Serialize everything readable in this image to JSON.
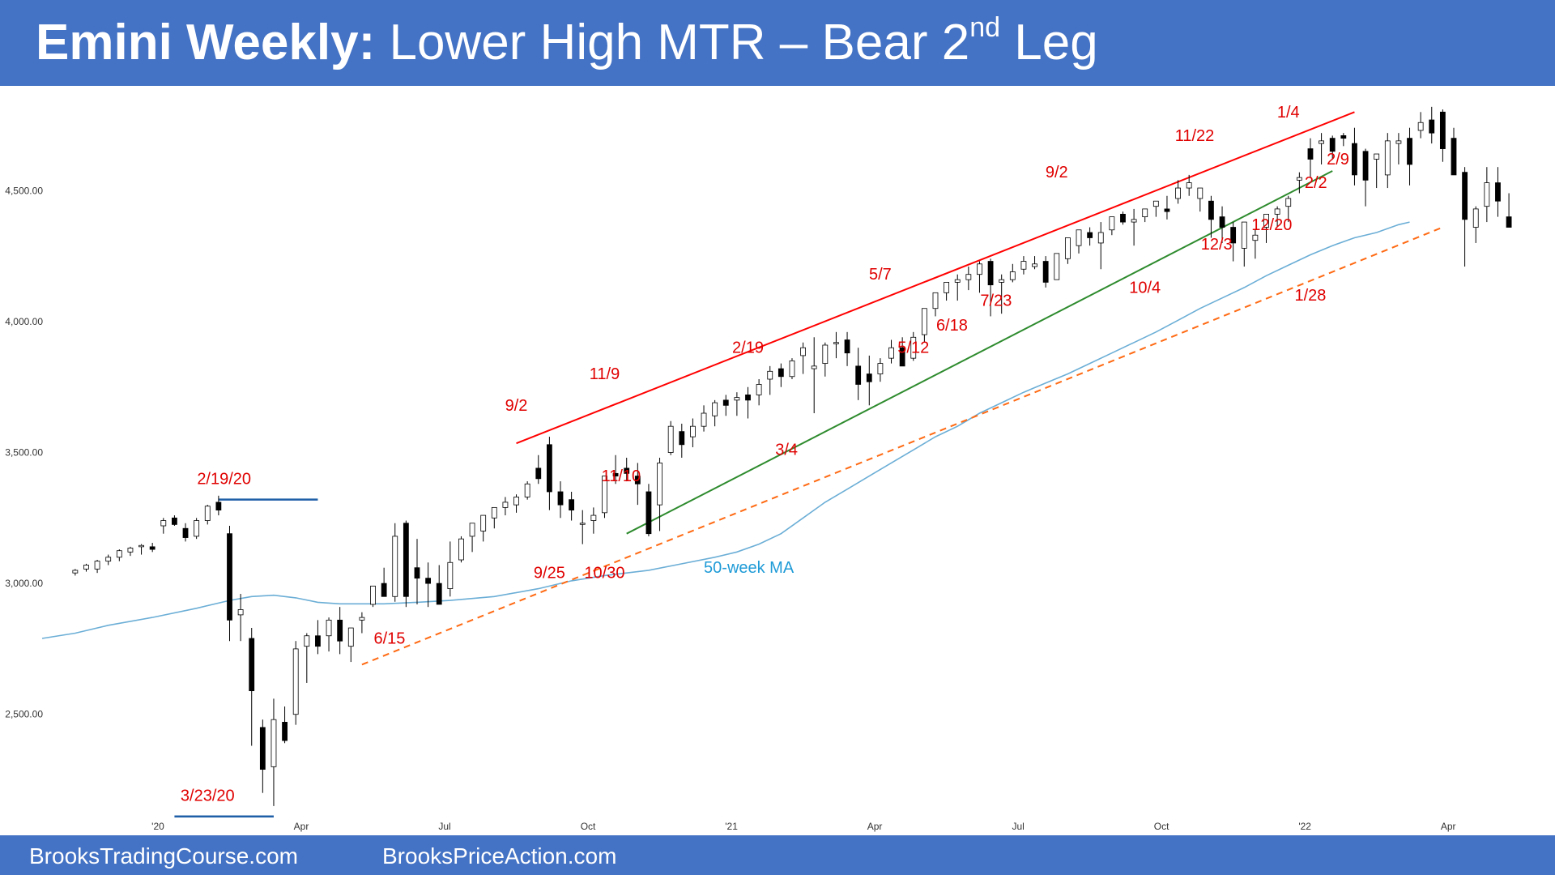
{
  "header": {
    "title_bold": "Emini Weekly:",
    "title_rest": " Lower High MTR – Bear 2",
    "title_sup": "nd",
    "title_tail": " Leg"
  },
  "footer": {
    "left": "BrooksTradingCourse.com",
    "right": "BrooksPriceAction.com"
  },
  "colors": {
    "banner": "#4472c4",
    "bull_candle": "#ffffff",
    "bear_candle": "#000000",
    "moving_average": "#6baed6",
    "upper_channel": "#ff0000",
    "lower_channel": "#2e8b2e",
    "trend_line": "#ff6a13",
    "level_line": "#1f5fa8",
    "annotation": "#e00000"
  },
  "chart_data": {
    "type": "candlestick",
    "x_unit": "weeks since first plotted bar (week of 2019-11-11)",
    "ylim": [
      2100,
      4900
    ],
    "xlim": [
      -3,
      125
    ],
    "yticks": [
      {
        "value": 2500,
        "label": "2,500.00"
      },
      {
        "value": 3000,
        "label": "3,000.00"
      },
      {
        "value": 3500,
        "label": "3,500.00"
      },
      {
        "value": 4000,
        "label": "4,000.00"
      },
      {
        "value": 4500,
        "label": "4,500.00"
      }
    ],
    "xticks": [
      {
        "x": 7.5,
        "label": "'20"
      },
      {
        "x": 20.5,
        "label": "Apr"
      },
      {
        "x": 33.5,
        "label": "Jul"
      },
      {
        "x": 46.5,
        "label": "Oct"
      },
      {
        "x": 59.5,
        "label": "'21"
      },
      {
        "x": 72.5,
        "label": "Apr"
      },
      {
        "x": 85.5,
        "label": "Jul"
      },
      {
        "x": 98.5,
        "label": "Oct"
      },
      {
        "x": 111.5,
        "label": "'22"
      },
      {
        "x": 124.5,
        "label": "Apr"
      }
    ],
    "candles_ohlc": [
      [
        3040,
        3055,
        3030,
        3050
      ],
      [
        3055,
        3075,
        3045,
        3070
      ],
      [
        3055,
        3090,
        3040,
        3085
      ],
      [
        3085,
        3110,
        3070,
        3100
      ],
      [
        3100,
        3130,
        3085,
        3125
      ],
      [
        3120,
        3140,
        3105,
        3135
      ],
      [
        3140,
        3150,
        3110,
        3145
      ],
      [
        3140,
        3155,
        3120,
        3130
      ],
      [
        3220,
        3250,
        3190,
        3240
      ],
      [
        3250,
        3260,
        3220,
        3225
      ],
      [
        3210,
        3230,
        3160,
        3175
      ],
      [
        3180,
        3250,
        3170,
        3240
      ],
      [
        3240,
        3300,
        3225,
        3295
      ],
      [
        3310,
        3335,
        3260,
        3280
      ],
      [
        3190,
        3220,
        2780,
        2860
      ],
      [
        2880,
        2960,
        2780,
        2900
      ],
      [
        2790,
        2830,
        2380,
        2590
      ],
      [
        2450,
        2480,
        2200,
        2290
      ],
      [
        2300,
        2560,
        2150,
        2480
      ],
      [
        2470,
        2530,
        2390,
        2400
      ],
      [
        2500,
        2780,
        2460,
        2750
      ],
      [
        2760,
        2810,
        2620,
        2800
      ],
      [
        2800,
        2860,
        2730,
        2760
      ],
      [
        2800,
        2870,
        2740,
        2860
      ],
      [
        2860,
        2910,
        2730,
        2780
      ],
      [
        2760,
        2810,
        2700,
        2830
      ],
      [
        2860,
        2890,
        2810,
        2870
      ],
      [
        2920,
        2990,
        2910,
        2990
      ],
      [
        3000,
        3060,
        2960,
        2950
      ],
      [
        2950,
        3230,
        2930,
        3180
      ],
      [
        3230,
        3240,
        2910,
        2950
      ],
      [
        3060,
        3170,
        2920,
        3020
      ],
      [
        3020,
        3080,
        2910,
        3000
      ],
      [
        3000,
        3070,
        2930,
        2920
      ],
      [
        2980,
        3160,
        2950,
        3080
      ],
      [
        3090,
        3180,
        3080,
        3170
      ],
      [
        3180,
        3200,
        3120,
        3230
      ],
      [
        3200,
        3250,
        3160,
        3260
      ],
      [
        3250,
        3290,
        3210,
        3290
      ],
      [
        3290,
        3330,
        3260,
        3310
      ],
      [
        3300,
        3340,
        3270,
        3330
      ],
      [
        3330,
        3390,
        3320,
        3380
      ],
      [
        3440,
        3490,
        3380,
        3400
      ],
      [
        3530,
        3560,
        3280,
        3350
      ],
      [
        3350,
        3390,
        3250,
        3300
      ],
      [
        3320,
        3350,
        3240,
        3280
      ],
      [
        3230,
        3280,
        3150,
        3230
      ],
      [
        3240,
        3290,
        3190,
        3260
      ],
      [
        3270,
        3390,
        3250,
        3410
      ],
      [
        3420,
        3490,
        3380,
        3410
      ],
      [
        3440,
        3480,
        3390,
        3420
      ],
      [
        3410,
        3460,
        3300,
        3380
      ],
      [
        3350,
        3380,
        3180,
        3190
      ],
      [
        3300,
        3480,
        3200,
        3460
      ],
      [
        3500,
        3620,
        3490,
        3600
      ],
      [
        3580,
        3610,
        3480,
        3530
      ],
      [
        3560,
        3630,
        3520,
        3600
      ],
      [
        3600,
        3680,
        3580,
        3650
      ],
      [
        3640,
        3700,
        3600,
        3690
      ],
      [
        3700,
        3720,
        3640,
        3680
      ],
      [
        3700,
        3730,
        3640,
        3710
      ],
      [
        3720,
        3750,
        3630,
        3700
      ],
      [
        3720,
        3780,
        3680,
        3760
      ],
      [
        3780,
        3830,
        3720,
        3810
      ],
      [
        3820,
        3840,
        3750,
        3790
      ],
      [
        3790,
        3860,
        3780,
        3850
      ],
      [
        3870,
        3920,
        3800,
        3900
      ],
      [
        3820,
        3940,
        3650,
        3830
      ],
      [
        3840,
        3920,
        3790,
        3910
      ],
      [
        3920,
        3960,
        3860,
        3920
      ],
      [
        3930,
        3960,
        3830,
        3880
      ],
      [
        3830,
        3900,
        3700,
        3760
      ],
      [
        3800,
        3870,
        3680,
        3770
      ],
      [
        3800,
        3860,
        3770,
        3840
      ],
      [
        3860,
        3930,
        3840,
        3900
      ],
      [
        3900,
        3940,
        3840,
        3830
      ],
      [
        3860,
        3960,
        3850,
        3940
      ],
      [
        3950,
        4010,
        3920,
        4050
      ],
      [
        4050,
        4110,
        4020,
        4110
      ],
      [
        4110,
        4150,
        4080,
        4150
      ],
      [
        4150,
        4180,
        4080,
        4160
      ],
      [
        4160,
        4210,
        4120,
        4180
      ],
      [
        4180,
        4230,
        4110,
        4220
      ],
      [
        4230,
        4240,
        4020,
        4140
      ],
      [
        4150,
        4180,
        4030,
        4160
      ],
      [
        4160,
        4220,
        4150,
        4190
      ],
      [
        4200,
        4250,
        4180,
        4230
      ],
      [
        4210,
        4250,
        4200,
        4220
      ],
      [
        4230,
        4250,
        4130,
        4150
      ],
      [
        4160,
        4240,
        4160,
        4260
      ],
      [
        4240,
        4300,
        4220,
        4320
      ],
      [
        4290,
        4330,
        4260,
        4350
      ],
      [
        4340,
        4360,
        4290,
        4320
      ],
      [
        4300,
        4380,
        4200,
        4340
      ],
      [
        4350,
        4400,
        4330,
        4400
      ],
      [
        4410,
        4420,
        4370,
        4380
      ],
      [
        4380,
        4430,
        4290,
        4390
      ],
      [
        4400,
        4430,
        4380,
        4430
      ],
      [
        4440,
        4460,
        4400,
        4460
      ],
      [
        4430,
        4480,
        4390,
        4420
      ],
      [
        4470,
        4540,
        4450,
        4510
      ],
      [
        4510,
        4560,
        4480,
        4530
      ],
      [
        4470,
        4510,
        4420,
        4510
      ],
      [
        4460,
        4480,
        4320,
        4390
      ],
      [
        4400,
        4440,
        4300,
        4360
      ],
      [
        4360,
        4380,
        4230,
        4300
      ],
      [
        4280,
        4380,
        4210,
        4380
      ],
      [
        4310,
        4350,
        4240,
        4330
      ],
      [
        4360,
        4410,
        4300,
        4410
      ],
      [
        4410,
        4440,
        4360,
        4430
      ],
      [
        4440,
        4480,
        4380,
        4470
      ],
      [
        4540,
        4570,
        4490,
        4550
      ],
      [
        4660,
        4700,
        4550,
        4620
      ],
      [
        4680,
        4720,
        4600,
        4690
      ],
      [
        4700,
        4710,
        4620,
        4650
      ],
      [
        4710,
        4720,
        4670,
        4700
      ],
      [
        4680,
        4740,
        4520,
        4560
      ],
      [
        4650,
        4660,
        4440,
        4540
      ],
      [
        4620,
        4640,
        4510,
        4640
      ],
      [
        4560,
        4720,
        4510,
        4690
      ],
      [
        4680,
        4720,
        4600,
        4690
      ],
      [
        4700,
        4740,
        4520,
        4600
      ],
      [
        4730,
        4800,
        4700,
        4760
      ],
      [
        4770,
        4820,
        4680,
        4720
      ],
      [
        4800,
        4810,
        4610,
        4660
      ],
      [
        4700,
        4740,
        4580,
        4560
      ],
      [
        4570,
        4590,
        4210,
        4390
      ],
      [
        4360,
        4440,
        4300,
        4430
      ],
      [
        4440,
        4590,
        4380,
        4530
      ],
      [
        4530,
        4590,
        4400,
        4460
      ],
      [
        4400,
        4490,
        4390,
        4360
      ]
    ],
    "moving_average_label": "50-week MA",
    "moving_average": [
      [
        -3,
        2790
      ],
      [
        0,
        2810
      ],
      [
        3,
        2840
      ],
      [
        7,
        2870
      ],
      [
        11,
        2905
      ],
      [
        14,
        2935
      ],
      [
        16,
        2950
      ],
      [
        18,
        2955
      ],
      [
        20,
        2945
      ],
      [
        22,
        2928
      ],
      [
        24,
        2922
      ],
      [
        28,
        2922
      ],
      [
        31,
        2928
      ],
      [
        34,
        2935
      ],
      [
        38,
        2950
      ],
      [
        42,
        2980
      ],
      [
        45,
        3010
      ],
      [
        48,
        3030
      ],
      [
        52,
        3050
      ],
      [
        55,
        3075
      ],
      [
        58,
        3100
      ],
      [
        60,
        3120
      ],
      [
        62,
        3150
      ],
      [
        64,
        3190
      ],
      [
        66,
        3250
      ],
      [
        68,
        3310
      ],
      [
        70,
        3360
      ],
      [
        72,
        3410
      ],
      [
        74,
        3460
      ],
      [
        76,
        3510
      ],
      [
        78,
        3560
      ],
      [
        80,
        3600
      ],
      [
        82,
        3650
      ],
      [
        84,
        3690
      ],
      [
        86,
        3730
      ],
      [
        88,
        3765
      ],
      [
        90,
        3800
      ],
      [
        92,
        3840
      ],
      [
        94,
        3880
      ],
      [
        96,
        3920
      ],
      [
        98,
        3960
      ],
      [
        100,
        4005
      ],
      [
        102,
        4050
      ],
      [
        104,
        4090
      ],
      [
        106,
        4130
      ],
      [
        108,
        4175
      ],
      [
        110,
        4215
      ],
      [
        112,
        4255
      ],
      [
        114,
        4290
      ],
      [
        116,
        4320
      ],
      [
        118,
        4340
      ],
      [
        120,
        4370
      ],
      [
        121,
        4380
      ]
    ],
    "lines": [
      {
        "name": "upper channel",
        "from": [
          40,
          3535
        ],
        "to": [
          116,
          4800
        ]
      },
      {
        "name": "lower channel",
        "from": [
          50,
          3190
        ],
        "to": [
          114,
          4575
        ]
      },
      {
        "name": "trend line",
        "from": [
          26,
          2690
        ],
        "to": [
          124,
          4360
        ]
      },
      {
        "name": "2/19/20 high",
        "from": [
          13,
          3320
        ],
        "to": [
          22,
          3320
        ]
      },
      {
        "name": "3/23/20 low",
        "from": [
          9,
          2110
        ],
        "to": [
          18,
          2110
        ]
      }
    ],
    "annotations": [
      {
        "text": "9/2",
        "x": 40,
        "y": 3660
      },
      {
        "text": "11/9",
        "x": 48,
        "y": 3780
      },
      {
        "text": "2/19",
        "x": 61,
        "y": 3880
      },
      {
        "text": "5/7",
        "x": 73,
        "y": 4160
      },
      {
        "text": "9/2",
        "x": 89,
        "y": 4550
      },
      {
        "text": "11/22",
        "x": 101.5,
        "y": 4690
      },
      {
        "text": "1/4",
        "x": 110,
        "y": 4780
      },
      {
        "text": "2/9",
        "x": 114.5,
        "y": 4600
      },
      {
        "text": "2/2",
        "x": 112.5,
        "y": 4510
      },
      {
        "text": "12/20",
        "x": 108.5,
        "y": 4350
      },
      {
        "text": "12/3",
        "x": 103.5,
        "y": 4275
      },
      {
        "text": "10/4",
        "x": 97,
        "y": 4110
      },
      {
        "text": "7/23",
        "x": 83.5,
        "y": 4060
      },
      {
        "text": "6/18",
        "x": 79.5,
        "y": 3965
      },
      {
        "text": "5/12",
        "x": 76,
        "y": 3880
      },
      {
        "text": "1/28",
        "x": 112,
        "y": 4080
      },
      {
        "text": "2/19/20",
        "x": 13.5,
        "y": 3380
      },
      {
        "text": "3/4",
        "x": 64.5,
        "y": 3490
      },
      {
        "text": "11/10",
        "x": 49.5,
        "y": 3390
      },
      {
        "text": "9/25",
        "x": 43,
        "y": 3020
      },
      {
        "text": "10/30",
        "x": 48,
        "y": 3020
      },
      {
        "text": "6/15",
        "x": 28.5,
        "y": 2770
      },
      {
        "text": "3/23/20",
        "x": 12,
        "y": 2170
      }
    ]
  }
}
